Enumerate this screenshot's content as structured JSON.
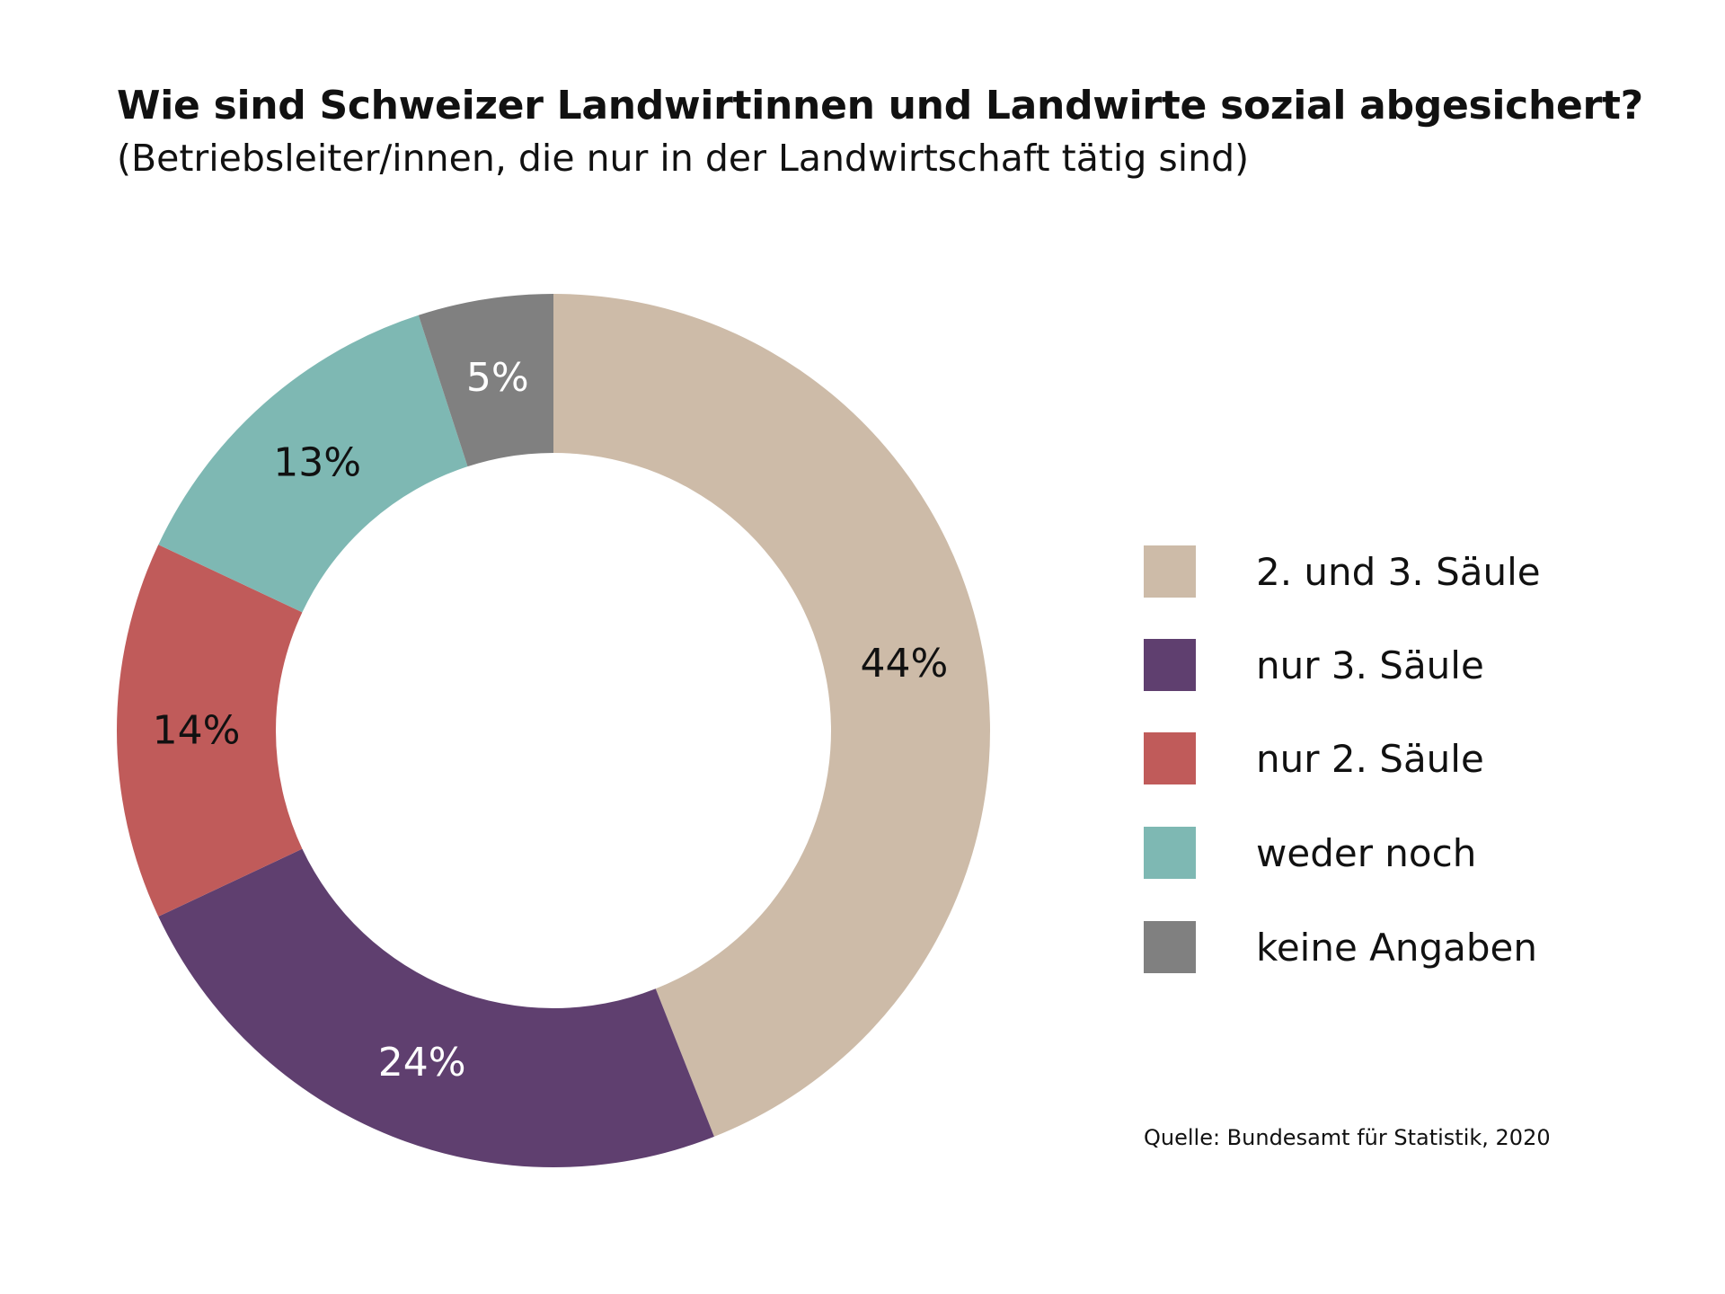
{
  "chart_data": {
    "type": "pie",
    "donut": true,
    "title": "Wie sind Schweizer Landwirtinnen und Landwirte sozial abgesichert?",
    "subtitle": "(Betriebsleiter/innen, die nur in der Landwirtschaft tätig sind)",
    "legend_placement": "right",
    "slices": [
      {
        "name": "2. und 3. Säule",
        "value": 44,
        "label": "44%",
        "color": "#CDBBA8",
        "label_color": "#111111"
      },
      {
        "name": "nur 3. Säule",
        "value": 24,
        "label": "24%",
        "color": "#5F3F6F",
        "label_color": "#FFFFFF"
      },
      {
        "name": "nur 2. Säule",
        "value": 14,
        "label": "14%",
        "color": "#C05B5A",
        "label_color": "#111111"
      },
      {
        "name": "weder noch",
        "value": 13,
        "label": "13%",
        "color": "#7EB8B3",
        "label_color": "#111111"
      },
      {
        "name": "keine Angaben",
        "value": 5,
        "label": "5%",
        "color": "#808080",
        "label_color": "#FFFFFF"
      }
    ],
    "source": "Quelle: Bundesamt für Statistik, 2020"
  }
}
